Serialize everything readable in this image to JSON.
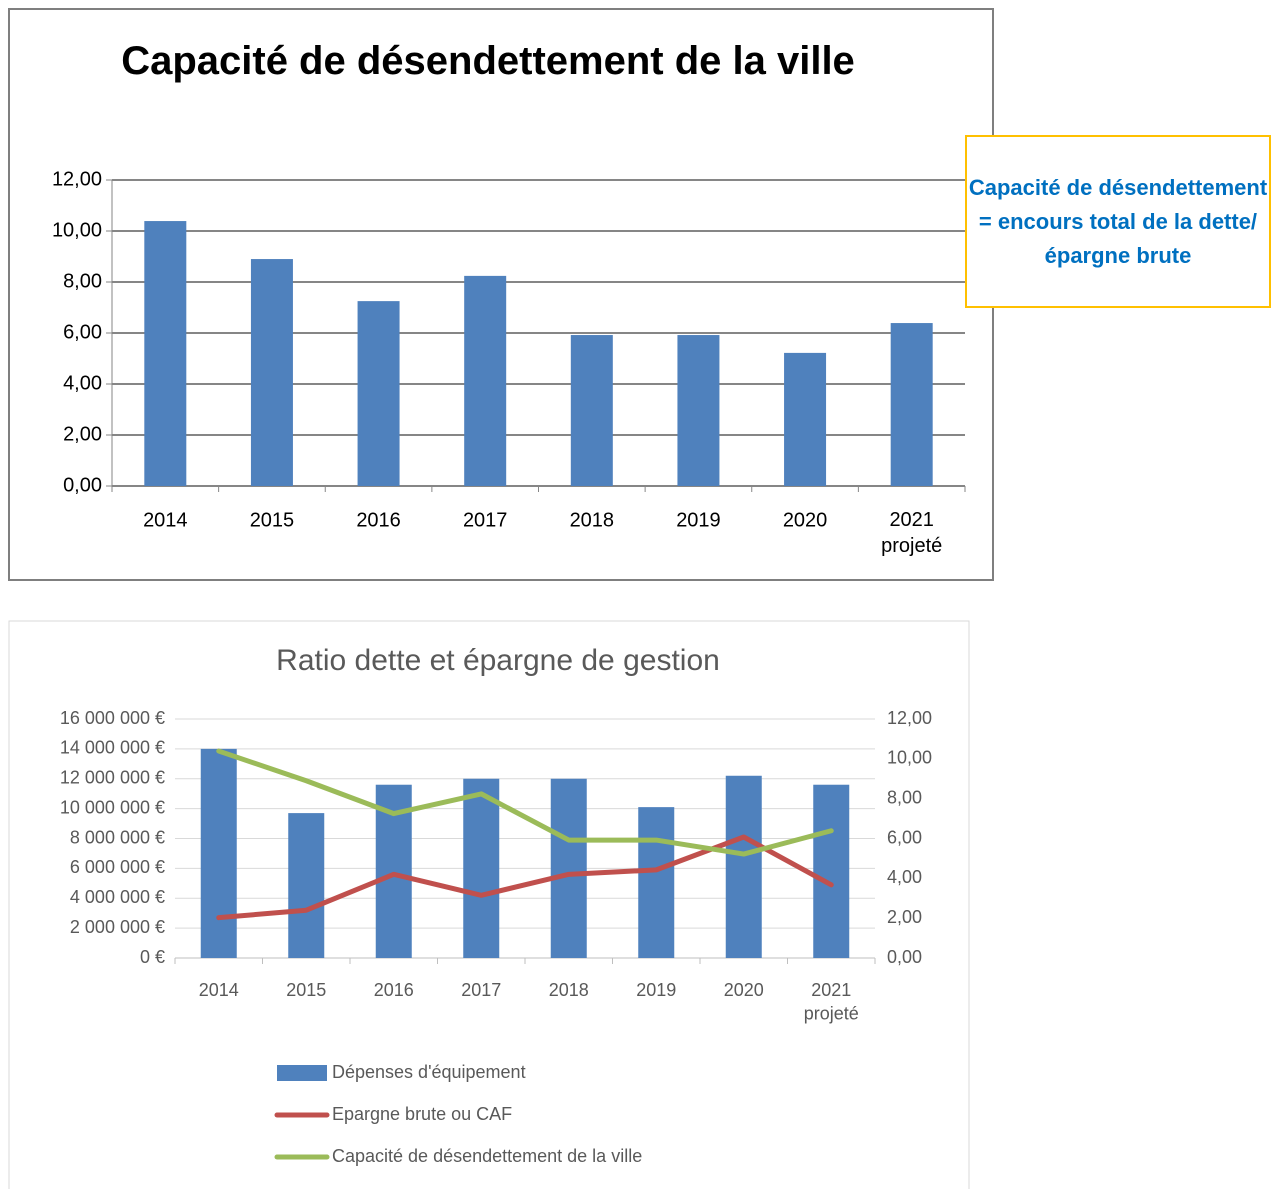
{
  "chart_data": [
    {
      "type": "bar",
      "title": "Capacité de désendettement de la ville",
      "annotation": "Capacité de désendettement = encours total de la dette/épargne brute",
      "categories": [
        "2014",
        "2015",
        "2016",
        "2017",
        "2018",
        "2019",
        "2020",
        "2021\nprojeté"
      ],
      "values": [
        10.39,
        8.9,
        7.25,
        8.24,
        5.92,
        5.92,
        5.22,
        6.39
      ],
      "color": "#4f81bd",
      "ylim": [
        0,
        12
      ],
      "yticks": [
        {
          "value": 0,
          "label": "0,00"
        },
        {
          "value": 2,
          "label": "2,00"
        },
        {
          "value": 4,
          "label": "4,00"
        },
        {
          "value": 6,
          "label": "6,00"
        },
        {
          "value": 8,
          "label": "8,00"
        },
        {
          "value": 10,
          "label": "10,00"
        },
        {
          "value": 12,
          "label": "12,00"
        }
      ],
      "grid": true
    },
    {
      "type": "combo",
      "title": "Ratio dette et épargne de gestion",
      "categories": [
        "2014",
        "2015",
        "2016",
        "2017",
        "2018",
        "2019",
        "2020",
        "2021\nprojeté"
      ],
      "series": [
        {
          "name": "Dépenses d'équipement",
          "type": "bar",
          "color": "#4f81bd",
          "values": [
            14000000,
            9700000,
            11600000,
            12000000,
            12000000,
            10100000,
            12200000,
            11600000
          ]
        },
        {
          "name": "Epargne brute ou CAF",
          "type": "line",
          "color": "#c0504d",
          "values": [
            2700000,
            3200000,
            5600000,
            4200000,
            5600000,
            5900000,
            8100000,
            4900000
          ]
        },
        {
          "name": "Capacité de désendettement de la ville",
          "type": "line",
          "color": "#9bbb59",
          "axis": "y2",
          "values": [
            10.39,
            8.9,
            7.25,
            8.24,
            5.92,
            5.92,
            5.22,
            6.39
          ]
        }
      ],
      "ylim": [
        0,
        16000000
      ],
      "yticks": [
        {
          "value": 0,
          "label": "0 €"
        },
        {
          "value": 2000000,
          "label": "2 000 000 €"
        },
        {
          "value": 4000000,
          "label": "4 000 000 €"
        },
        {
          "value": 6000000,
          "label": "6 000 000 €"
        },
        {
          "value": 8000000,
          "label": "8 000 000 €"
        },
        {
          "value": 10000000,
          "label": "10 000 000 €"
        },
        {
          "value": 12000000,
          "label": "12 000 000 €"
        },
        {
          "value": 14000000,
          "label": "14 000 000 €"
        },
        {
          "value": 16000000,
          "label": "16 000 000 €"
        }
      ],
      "y2lim": [
        0,
        12
      ],
      "y2ticks": [
        {
          "value": 0,
          "label": "0,00"
        },
        {
          "value": 2,
          "label": "2,00"
        },
        {
          "value": 4,
          "label": "4,00"
        },
        {
          "value": 6,
          "label": "6,00"
        },
        {
          "value": 8,
          "label": "8,00"
        },
        {
          "value": 10,
          "label": "10,00"
        },
        {
          "value": 12,
          "label": "12,00"
        }
      ],
      "grid": true,
      "legend": "bottom"
    }
  ]
}
